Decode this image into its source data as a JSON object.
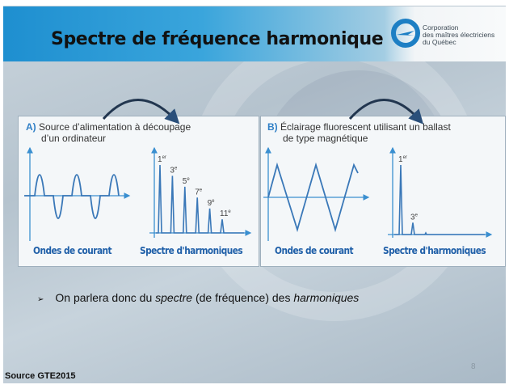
{
  "slide": {
    "title": "Spectre de fréquence harmonique",
    "logo": {
      "line1": "Corporation",
      "line2": "des maîtres électriciens",
      "line3": "du Québec"
    },
    "panel_a": {
      "letter": "A)",
      "title_line1": "Source d’alimentation à découpage",
      "title_line2": "d’un ordinateur",
      "wave_caption": "Ondes de courant",
      "spectrum_caption": "Spectre d'harmoniques",
      "harmonics": [
        {
          "order": "1",
          "suffix": "er",
          "relative_amplitude": 1.0
        },
        {
          "order": "3",
          "suffix": "e",
          "relative_amplitude": 0.84
        },
        {
          "order": "5",
          "suffix": "e",
          "relative_amplitude": 0.68
        },
        {
          "order": "7",
          "suffix": "e",
          "relative_amplitude": 0.52
        },
        {
          "order": "9",
          "suffix": "e",
          "relative_amplitude": 0.36
        },
        {
          "order": "11",
          "suffix": "e",
          "relative_amplitude": 0.2
        }
      ]
    },
    "panel_b": {
      "letter": "B)",
      "title_line1": "Éclairage fluorescent utilisant un ballast",
      "title_line2": "de type magnétique",
      "wave_caption": "Ondes de courant",
      "spectrum_caption": "Spectre d'harmoniques",
      "harmonics": [
        {
          "order": "1",
          "suffix": "er",
          "relative_amplitude": 1.0
        },
        {
          "order": "3",
          "suffix": "e",
          "relative_amplitude": 0.17
        }
      ]
    },
    "bullet": {
      "part1": "On parlera donc du ",
      "italic1": "spectre",
      "part2": " (de fréquence) des ",
      "italic2": "harmoniques"
    },
    "source": "Source GTE2015",
    "page_number": "8",
    "colors": {
      "header_blue": "#1e8fd0",
      "diagram_blue": "#3a78b8",
      "caption_blue": "#1f5fa8"
    }
  }
}
